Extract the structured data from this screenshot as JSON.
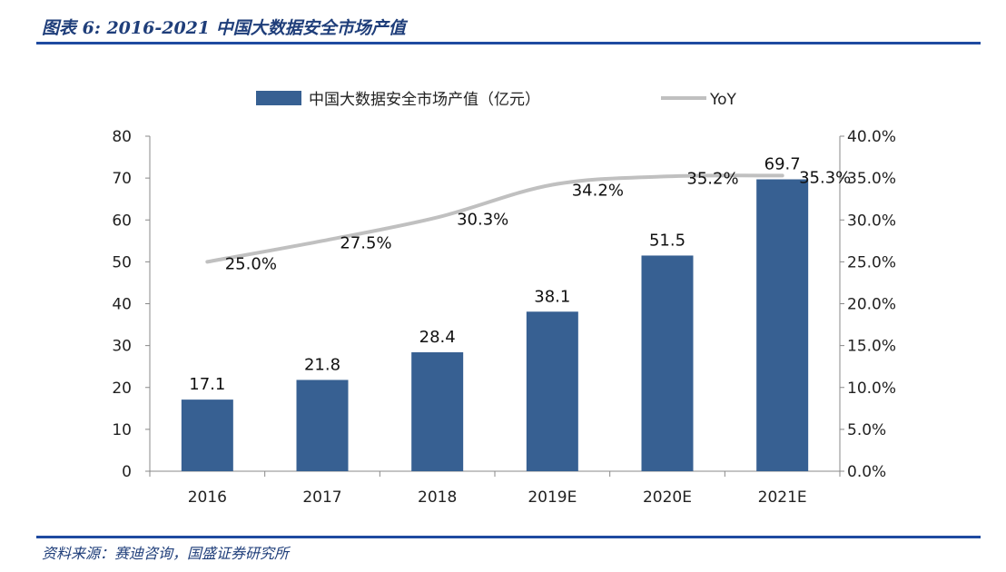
{
  "header": {
    "title": "图表 6:  2016-2021 中国大数据安全市场产值"
  },
  "footer": {
    "source": "资料来源：赛迪咨询，国盛证券研究所"
  },
  "colors": {
    "bar": "#376092",
    "line": "#c0c0c0",
    "rule": "#1f4aa0",
    "text": "#1f3e7a"
  },
  "chart_data": {
    "type": "bar",
    "categories": [
      "2016",
      "2017",
      "2018",
      "2019E",
      "2020E",
      "2021E"
    ],
    "series": [
      {
        "name": "中国大数据安全市场产值（亿元）",
        "type": "bar",
        "axis": "left",
        "values": [
          17.1,
          21.8,
          28.4,
          38.1,
          51.5,
          69.7
        ],
        "labels": [
          "17.1",
          "21.8",
          "28.4",
          "38.1",
          "51.5",
          "69.7"
        ]
      },
      {
        "name": "YoY",
        "type": "line",
        "axis": "right",
        "values": [
          25.0,
          27.5,
          30.3,
          34.2,
          35.2,
          35.3
        ],
        "labels": [
          "25.0%",
          "27.5%",
          "30.3%",
          "34.2%",
          "35.2%",
          "35.3%"
        ]
      }
    ],
    "ylim": [
      0,
      80
    ],
    "y_ticks": [
      "0",
      "10",
      "20",
      "30",
      "40",
      "50",
      "60",
      "70",
      "80"
    ],
    "y2lim": [
      0,
      40
    ],
    "y2_ticks": [
      "0.0%",
      "5.0%",
      "10.0%",
      "15.0%",
      "20.0%",
      "25.0%",
      "30.0%",
      "35.0%",
      "40.0%"
    ],
    "legend_position": "top",
    "grid": false
  }
}
